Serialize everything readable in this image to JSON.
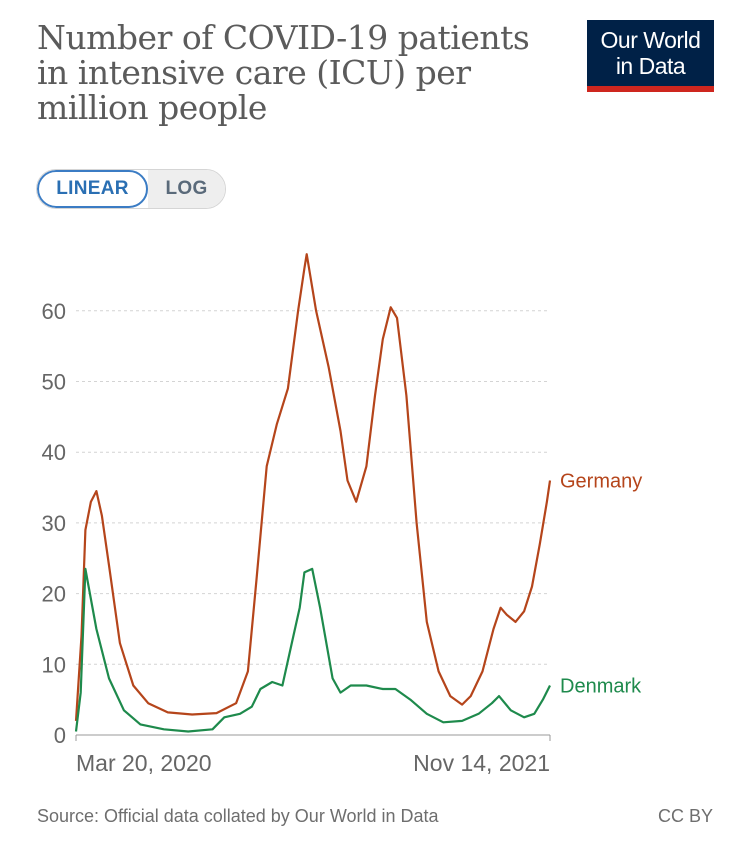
{
  "title": "Number of COVID-19 patients in intensive care (ICU) per million people",
  "logo": {
    "line1": "Our World",
    "line2": "in Data"
  },
  "scale_toggle": {
    "linear_label": "LINEAR",
    "log_label": "LOG",
    "selected": "LINEAR"
  },
  "footer": {
    "source": "Source: Official data collated by Our World in Data",
    "license": "CC BY"
  },
  "colors": {
    "germany": "#b5451b",
    "denmark": "#1e8a4c",
    "logo_bg": "#002147",
    "logo_bar": "#ce261e"
  },
  "chart_data": {
    "type": "line",
    "title": "Number of COVID-19 patients in intensive care (ICU) per million people",
    "x_range": [
      "2020-03-20",
      "2021-11-14"
    ],
    "x_tick_labels": [
      "Mar 20, 2020",
      "Nov 14, 2021"
    ],
    "ylim": [
      0,
      70
    ],
    "y_ticks": [
      0,
      10,
      20,
      30,
      40,
      50,
      60
    ],
    "grid": "horizontal dashed",
    "legend": "labels at line ends (right)",
    "series": [
      {
        "name": "Germany",
        "color": "#b5451b",
        "points": [
          [
            "2020-03-20",
            2
          ],
          [
            "2020-03-27",
            14
          ],
          [
            "2020-04-01",
            29
          ],
          [
            "2020-04-08",
            33
          ],
          [
            "2020-04-15",
            34.5
          ],
          [
            "2020-04-22",
            31
          ],
          [
            "2020-05-01",
            24
          ],
          [
            "2020-05-15",
            13
          ],
          [
            "2020-06-01",
            7
          ],
          [
            "2020-06-20",
            4.5
          ],
          [
            "2020-07-15",
            3.2
          ],
          [
            "2020-08-15",
            2.9
          ],
          [
            "2020-09-15",
            3.1
          ],
          [
            "2020-10-10",
            4.5
          ],
          [
            "2020-10-25",
            9
          ],
          [
            "2020-11-05",
            22
          ],
          [
            "2020-11-18",
            38
          ],
          [
            "2020-12-01",
            44
          ],
          [
            "2020-12-15",
            49
          ],
          [
            "2020-12-28",
            60
          ],
          [
            "2021-01-05",
            66
          ],
          [
            "2021-01-08",
            68
          ],
          [
            "2021-01-20",
            60
          ],
          [
            "2021-02-05",
            52
          ],
          [
            "2021-02-20",
            43
          ],
          [
            "2021-03-01",
            36
          ],
          [
            "2021-03-12",
            33
          ],
          [
            "2021-03-25",
            38
          ],
          [
            "2021-04-05",
            48
          ],
          [
            "2021-04-15",
            56
          ],
          [
            "2021-04-25",
            60.5
          ],
          [
            "2021-05-03",
            59
          ],
          [
            "2021-05-15",
            48
          ],
          [
            "2021-05-28",
            30
          ],
          [
            "2021-06-10",
            16
          ],
          [
            "2021-06-25",
            9
          ],
          [
            "2021-07-10",
            5.5
          ],
          [
            "2021-07-25",
            4.3
          ],
          [
            "2021-08-05",
            5.5
          ],
          [
            "2021-08-20",
            9
          ],
          [
            "2021-09-03",
            15
          ],
          [
            "2021-09-12",
            18
          ],
          [
            "2021-09-20",
            17
          ],
          [
            "2021-10-01",
            16
          ],
          [
            "2021-10-12",
            17.5
          ],
          [
            "2021-10-22",
            21
          ],
          [
            "2021-11-01",
            27
          ],
          [
            "2021-11-10",
            33
          ],
          [
            "2021-11-14",
            36
          ]
        ]
      },
      {
        "name": "Denmark",
        "color": "#1e8a4c",
        "points": [
          [
            "2020-03-20",
            0.5
          ],
          [
            "2020-03-26",
            6
          ],
          [
            "2020-04-01",
            23.5
          ],
          [
            "2020-04-05",
            21
          ],
          [
            "2020-04-15",
            15
          ],
          [
            "2020-05-01",
            8
          ],
          [
            "2020-05-20",
            3.5
          ],
          [
            "2020-06-10",
            1.5
          ],
          [
            "2020-07-10",
            0.8
          ],
          [
            "2020-08-10",
            0.5
          ],
          [
            "2020-09-10",
            0.8
          ],
          [
            "2020-09-25",
            2.5
          ],
          [
            "2020-10-15",
            3
          ],
          [
            "2020-10-30",
            4
          ],
          [
            "2020-11-10",
            6.5
          ],
          [
            "2020-11-25",
            7.5
          ],
          [
            "2020-12-08",
            7
          ],
          [
            "2020-12-20",
            13
          ],
          [
            "2020-12-30",
            18
          ],
          [
            "2021-01-05",
            23
          ],
          [
            "2021-01-15",
            23.5
          ],
          [
            "2021-01-25",
            18
          ],
          [
            "2021-02-10",
            8
          ],
          [
            "2021-02-20",
            6
          ],
          [
            "2021-03-05",
            7
          ],
          [
            "2021-03-25",
            7
          ],
          [
            "2021-04-15",
            6.5
          ],
          [
            "2021-05-01",
            6.5
          ],
          [
            "2021-05-20",
            5
          ],
          [
            "2021-06-10",
            3
          ],
          [
            "2021-07-01",
            1.8
          ],
          [
            "2021-07-25",
            2
          ],
          [
            "2021-08-15",
            3
          ],
          [
            "2021-09-01",
            4.5
          ],
          [
            "2021-09-10",
            5.5
          ],
          [
            "2021-09-25",
            3.5
          ],
          [
            "2021-10-12",
            2.5
          ],
          [
            "2021-10-25",
            3
          ],
          [
            "2021-11-05",
            5
          ],
          [
            "2021-11-14",
            7
          ]
        ]
      }
    ]
  }
}
